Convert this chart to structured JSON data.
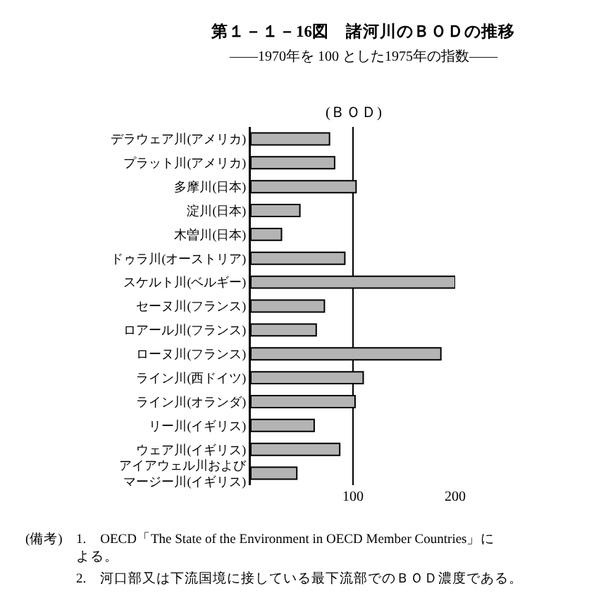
{
  "chart_data": {
    "type": "bar",
    "orientation": "horizontal",
    "title": "第１－１－16図　諸河川のＢＯＤの推移",
    "subtitle": "――1970年を 100 とした1975年の指数――",
    "categories": [
      "デラウェア川(アメリカ)",
      "プラット川(アメリカ)",
      "多摩川(日本)",
      "淀川(日本)",
      "木曽川(日本)",
      "ドゥラ川(オーストリア)",
      "スケルト川(ベルギー)",
      "セーヌ川(フランス)",
      "ロアール川(フランス)",
      "ローヌ川(フランス)",
      "ライン川(西ドイツ)",
      "ライン川(オランダ)",
      "リー川(イギリス)",
      "ウェア川(イギリス)",
      "アイアウェル川およびマージー川(イギリス)"
    ],
    "values": [
      77,
      82,
      103,
      48,
      30,
      92,
      200,
      72,
      64,
      186,
      110,
      102,
      62,
      87,
      45
    ],
    "color": "#b4b4b4",
    "xlim": [
      0,
      200
    ],
    "xticks": [
      100,
      200
    ],
    "grid": "x",
    "annotations": [
      "(ＢＯＤ)",
      "(備考)",
      "1.　OECD「The State of the Environment in OECD Member Countries」による。",
      "2.　河口部又は下流国境に接している最下流部でのＢＯＤ濃度である。"
    ]
  }
}
